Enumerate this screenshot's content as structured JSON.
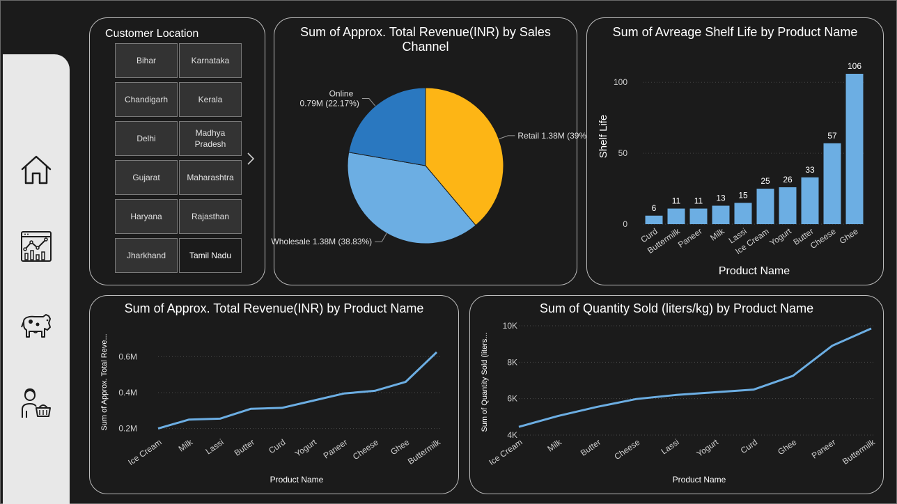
{
  "slicer": {
    "title": "Customer Location",
    "items": [
      {
        "label": "Bihar",
        "selected": false
      },
      {
        "label": "Karnataka",
        "selected": false
      },
      {
        "label": "Chandigarh",
        "selected": false
      },
      {
        "label": "Kerala",
        "selected": false
      },
      {
        "label": "Delhi",
        "selected": false
      },
      {
        "label": "Madhya Pradesh",
        "selected": false
      },
      {
        "label": "Gujarat",
        "selected": false
      },
      {
        "label": "Maharashtra",
        "selected": false
      },
      {
        "label": "Haryana",
        "selected": false
      },
      {
        "label": "Rajasthan",
        "selected": false
      },
      {
        "label": "Jharkhand",
        "selected": false
      },
      {
        "label": "Tamil Nadu",
        "selected": true
      }
    ]
  },
  "nav": [
    "home-icon",
    "analytics-dashboard-icon",
    "cow-icon",
    "customer-cart-icon"
  ],
  "chart_data": [
    {
      "id": "pie",
      "type": "pie",
      "title": "Sum of Approx. Total Revenue(INR) by Sales Channel",
      "title_lines": [
        "Sum of Approx. Total Revenue(INR) by Sales",
        "Channel"
      ],
      "slices": [
        {
          "name": "Retail",
          "value": 1.38,
          "label": "Retail 1.38M (39%)",
          "color": "#FDB515"
        },
        {
          "name": "Wholesale",
          "value": 1.38,
          "label": "Wholesale 1.38M (38.83%)",
          "color": "#6CAEE3"
        },
        {
          "name": "Online",
          "value": 0.79,
          "label": "Online",
          "label2": "0.79M (22.17%)",
          "color": "#2A78C0"
        }
      ]
    },
    {
      "id": "bar",
      "type": "bar",
      "title": "Sum of Avreage Shelf Life by Product Name",
      "xlabel": "Product Name",
      "ylabel": "Shelf Life",
      "categories": [
        "Curd",
        "Buttermilk",
        "Paneer",
        "Milk",
        "Lassi",
        "Ice Cream",
        "Yogurt",
        "Butter",
        "Cheese",
        "Ghee"
      ],
      "values": [
        6,
        11,
        11,
        13,
        15,
        25,
        26,
        33,
        57,
        106
      ],
      "yticks": [
        0,
        50,
        100
      ],
      "ylim": [
        0,
        106
      ],
      "color": "#6CAEE3"
    },
    {
      "id": "line1",
      "type": "line",
      "title": "Sum of Approx. Total Revenue(INR) by Product Name",
      "xlabel": "Product Name",
      "ylabel": "Sum of Approx. Total Reve...",
      "categories": [
        "Ice Cream",
        "Milk",
        "Lassi",
        "Butter",
        "Curd",
        "Yogurt",
        "Paneer",
        "Cheese",
        "Ghee",
        "Buttermilk"
      ],
      "values": [
        0.2,
        0.25,
        0.255,
        0.31,
        0.315,
        0.355,
        0.395,
        0.41,
        0.46,
        0.625
      ],
      "yticks": [
        0.2,
        0.4,
        0.6
      ],
      "ytick_labels": [
        "0.2M",
        "0.4M",
        "0.6M"
      ],
      "ylim": [
        0.15,
        0.65
      ],
      "color": "#6CAEE3"
    },
    {
      "id": "line2",
      "type": "line",
      "title": "Sum of Quantity Sold (liters/kg) by Product Name",
      "xlabel": "Product Name",
      "ylabel": "Sum of Quantity Sold (liters...",
      "categories": [
        "Ice Cream",
        "Milk",
        "Butter",
        "Cheese",
        "Lassi",
        "Yogurt",
        "Curd",
        "Ghee",
        "Paneer",
        "Buttermilk"
      ],
      "values": [
        4450,
        5050,
        5550,
        5980,
        6200,
        6350,
        6500,
        7250,
        8900,
        9850
      ],
      "yticks": [
        4000,
        6000,
        8000,
        10000
      ],
      "ytick_labels": [
        "4K",
        "6K",
        "8K",
        "10K"
      ],
      "ylim": [
        4000,
        10000
      ],
      "color": "#6CAEE3"
    }
  ]
}
